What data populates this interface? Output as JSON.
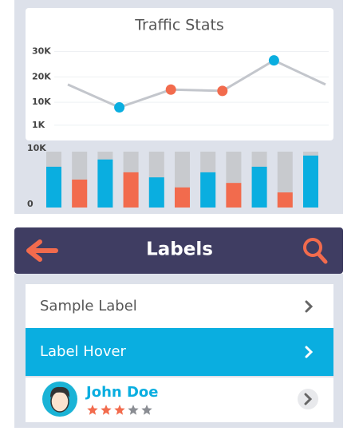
{
  "chart_data": [
    {
      "type": "line",
      "title": "Traffic Stats",
      "categories": [
        null,
        null,
        null,
        null,
        null,
        null
      ],
      "series": [
        {
          "color": "#c3c6cc",
          "values": [
            17000,
            8000,
            15000,
            14500,
            26500,
            17000
          ]
        }
      ],
      "marker_colors": [
        null,
        "#0aaee0",
        "#f26b4d",
        "#f26b4d",
        "#0aaee0",
        null
      ],
      "ylim": [
        0,
        33000
      ],
      "yticks": [
        {
          "value": 30000,
          "label": "30K"
        },
        {
          "value": 20000,
          "label": "20K"
        },
        {
          "value": 10000,
          "label": "10K"
        },
        {
          "value": 1000,
          "label": "1K"
        }
      ],
      "grid": true
    },
    {
      "type": "bar",
      "categories": [
        null,
        null,
        null,
        null,
        null,
        null,
        null,
        null,
        null,
        null,
        null
      ],
      "values": [
        7300,
        5000,
        8600,
        6300,
        5400,
        3600,
        6300,
        4400,
        7300,
        2700,
        9300
      ],
      "colors": [
        "#0aaee0",
        "#f26b4d",
        "#0aaee0",
        "#f26b4d",
        "#0aaee0",
        "#f26b4d",
        "#0aaee0",
        "#f26b4d",
        "#0aaee0",
        "#f26b4d",
        "#0aaee0"
      ],
      "track_color": "#c8cace",
      "ylim": [
        0,
        10000
      ],
      "yticks": [
        {
          "value": 10000,
          "label": "10K"
        },
        0
      ]
    }
  ],
  "header": {
    "title": "Labels"
  },
  "list": [
    {
      "label": "Sample Label"
    },
    {
      "label": "Label Hover",
      "state": "hover"
    },
    {
      "name": "John Doe",
      "rating": 3,
      "rating_max": 5
    }
  ]
}
